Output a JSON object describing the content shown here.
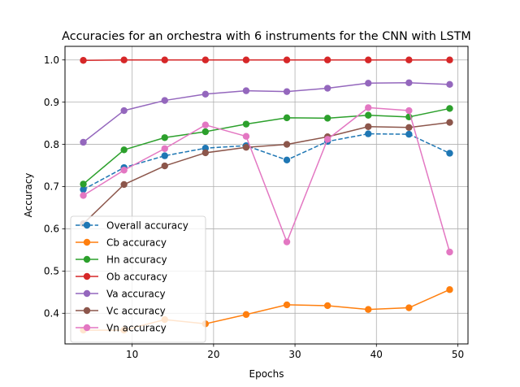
{
  "chart_data": {
    "type": "line",
    "title": "Accuracies for an orchestra with 6 instruments for the CNN with LSTM",
    "xlabel": "Epochs",
    "ylabel": "Accuracy",
    "xlim": [
      1.75,
      51.25
    ],
    "ylim": [
      0.3274,
      1.0322
    ],
    "xticks": [
      10,
      20,
      30,
      40,
      50
    ],
    "xtick_labels": [
      "10",
      "20",
      "30",
      "40",
      "50"
    ],
    "yticks": [
      0.4,
      0.5,
      0.6,
      0.7,
      0.8,
      0.9,
      1.0
    ],
    "ytick_labels": [
      "0.4",
      "0.5",
      "0.6",
      "0.7",
      "0.8",
      "0.9",
      "1.0"
    ],
    "grid": true,
    "legend_position": "lower-left",
    "x": [
      4,
      9,
      14,
      19,
      24,
      29,
      34,
      39,
      44,
      49
    ],
    "series": [
      {
        "name": "Overall accuracy",
        "color": "#1f77b4",
        "dashed": true,
        "values": [
          0.693,
          0.745,
          0.773,
          0.791,
          0.797,
          0.763,
          0.807,
          0.825,
          0.824,
          0.779
        ]
      },
      {
        "name": "Cb accuracy",
        "color": "#ff7f0e",
        "dashed": false,
        "values": [
          0.36,
          0.36,
          0.385,
          0.375,
          0.397,
          0.42,
          0.418,
          0.409,
          0.413,
          0.456
        ]
      },
      {
        "name": "Hn accuracy",
        "color": "#2ca02c",
        "dashed": false,
        "values": [
          0.706,
          0.787,
          0.816,
          0.83,
          0.848,
          0.863,
          0.862,
          0.869,
          0.865,
          0.885
        ]
      },
      {
        "name": "Ob accuracy",
        "color": "#d62728",
        "dashed": false,
        "values": [
          0.999,
          1.0,
          1.0,
          1.0,
          1.0,
          1.0,
          1.0,
          1.0,
          1.0,
          1.0
        ]
      },
      {
        "name": "Va accuracy",
        "color": "#9467bd",
        "dashed": false,
        "values": [
          0.805,
          0.88,
          0.904,
          0.919,
          0.927,
          0.925,
          0.933,
          0.945,
          0.946,
          0.942
        ]
      },
      {
        "name": "Vc accuracy",
        "color": "#8c564b",
        "dashed": false,
        "values": [
          0.612,
          0.705,
          0.749,
          0.78,
          0.793,
          0.8,
          0.818,
          0.842,
          0.84,
          0.852
        ]
      },
      {
        "name": "Vn accuracy",
        "color": "#e377c2",
        "dashed": false,
        "values": [
          0.679,
          0.739,
          0.79,
          0.846,
          0.819,
          0.569,
          0.812,
          0.887,
          0.88,
          0.545
        ]
      }
    ]
  }
}
